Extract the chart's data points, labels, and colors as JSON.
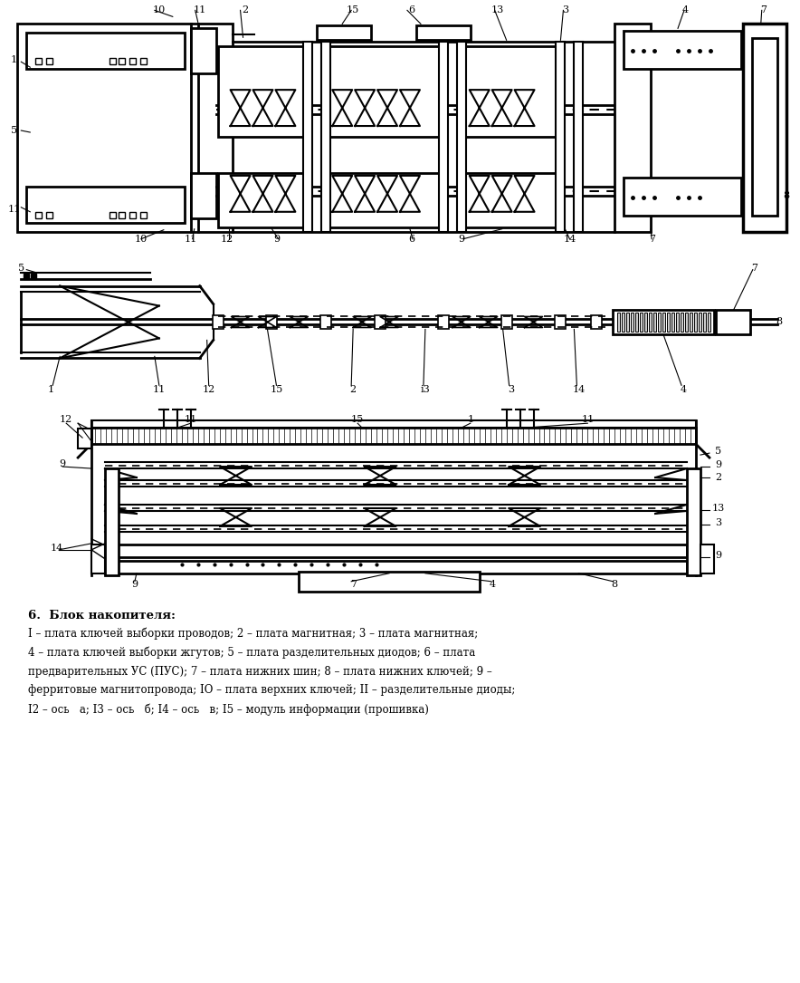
{
  "bg_color": "#ffffff",
  "line_color": "#000000",
  "title_text": "6.  Блок накопителя:",
  "description_lines": [
    "I – плата ключей выборки проводов; 2 – плата магнитная; 3 – плата магнитная;",
    "4 – плата ключей выборки жгутов; 5 – плата разделительных диодов; 6 – плата",
    "предварительных УС (ПУС); 7 – плата нижних шин; 8 – плата нижних ключей; 9 –",
    "ферритовые магнитопровода; IO – плата верхних ключей; II – разделительные диоды;",
    "I2 – ось   а; I3 – ось   б; I4 – ось   в; I5 – модуль информации (прошивка)"
  ]
}
